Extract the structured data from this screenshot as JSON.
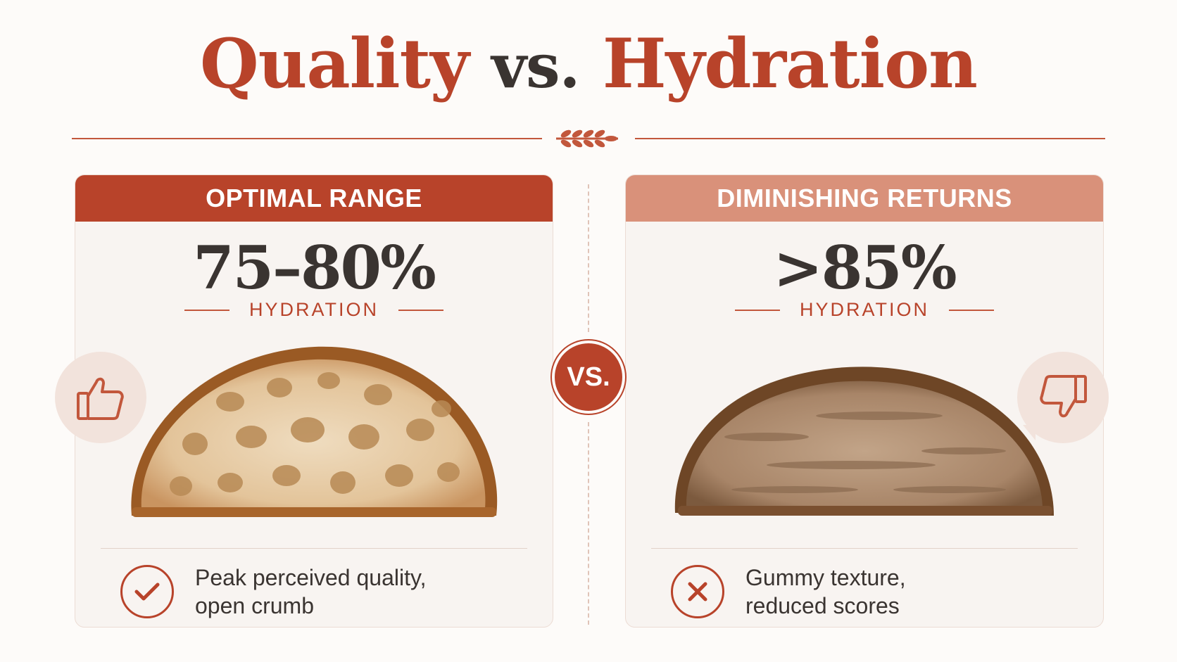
{
  "title": {
    "part1": "Quality",
    "part2": "vs.",
    "part3": "Hydration"
  },
  "left_panel": {
    "header": "OPTIMAL RANGE",
    "value": "75–80%",
    "unit_label": "HYDRATION",
    "caption_line1": "Peak perceived quality,",
    "caption_line2": "open crumb",
    "status_icon": "check-icon",
    "badge_icon": "thumbs-up-icon"
  },
  "right_panel": {
    "header": "DIMINISHING RETURNS",
    "value": ">85%",
    "unit_label": "HYDRATION",
    "caption_line1": "Gummy texture,",
    "caption_line2": "reduced scores",
    "status_icon": "x-icon",
    "badge_icon": "thumbs-down-icon"
  },
  "vs_badge": "VS.",
  "colors": {
    "accent": "#b8432a",
    "accent_light": "#d9917a",
    "text_dark": "#3a3431",
    "background": "#fdfbf9",
    "panel_bg": "#f8f4f1"
  }
}
